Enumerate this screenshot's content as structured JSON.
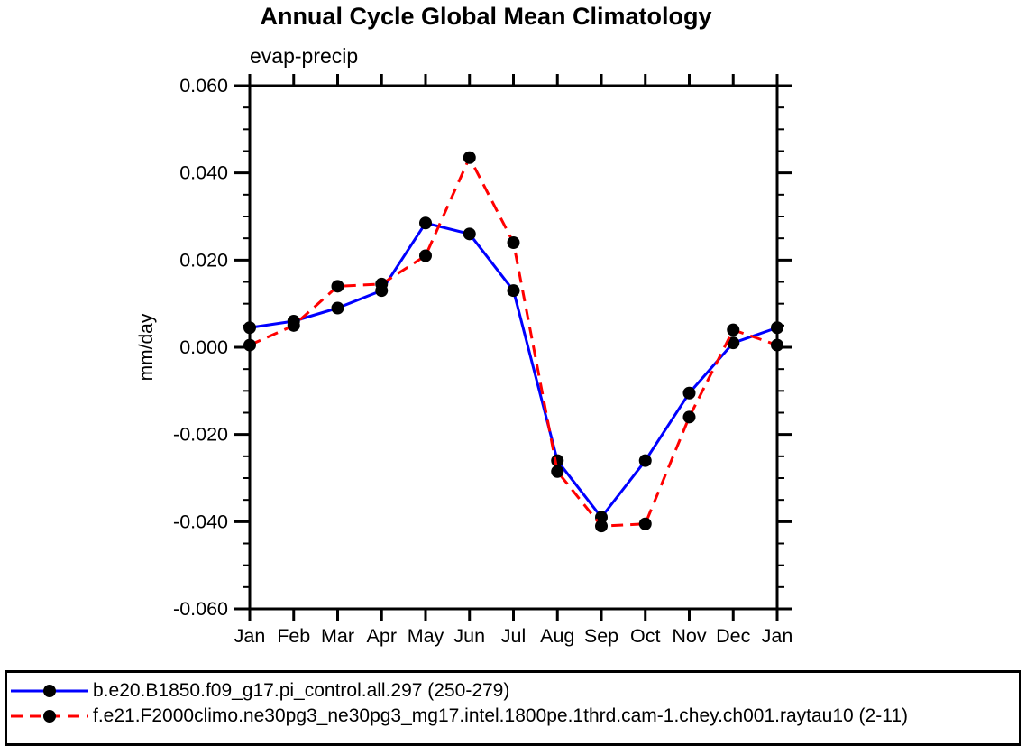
{
  "chart_data": {
    "type": "line",
    "title": "Annual Cycle Global Mean Climatology",
    "subtitle": "evap-precip",
    "ylabel": "mm/day",
    "xlabel": "",
    "categories": [
      "Jan",
      "Feb",
      "Mar",
      "Apr",
      "May",
      "Jun",
      "Jul",
      "Aug",
      "Sep",
      "Oct",
      "Nov",
      "Dec",
      "Jan"
    ],
    "ylim": [
      -0.06,
      0.06
    ],
    "ytick_major_interval": 0.02,
    "ytick_minor_interval": 0.005,
    "yticklabels": [
      "0.060",
      "0.040",
      "0.020",
      "0.000",
      "-0.020",
      "-0.040",
      "-0.060"
    ],
    "grid": "off",
    "legend_position": "bottom",
    "marker": "filled-circle",
    "marker_color": "#000000",
    "axis_color": "#000000",
    "series": [
      {
        "label": "b.e20.B1850.f09_g17.pi_control.all.297 (250-279)",
        "color": "#0000ff",
        "style": "solid",
        "values": [
          0.0045,
          0.006,
          0.009,
          0.013,
          0.0285,
          0.026,
          0.013,
          -0.026,
          -0.039,
          -0.026,
          -0.0105,
          0.001,
          0.0045
        ]
      },
      {
        "label": "f.e21.F2000climo.ne30pg3_ne30pg3_mg17.intel.1800pe.1thrd.cam-1.chey.ch001.raytau10 (2-11)",
        "color": "#ff0000",
        "style": "dashed",
        "values": [
          0.0005,
          0.005,
          0.014,
          0.0145,
          0.021,
          0.0435,
          0.024,
          -0.0285,
          -0.041,
          -0.0405,
          -0.016,
          0.004,
          0.0005
        ]
      }
    ]
  }
}
